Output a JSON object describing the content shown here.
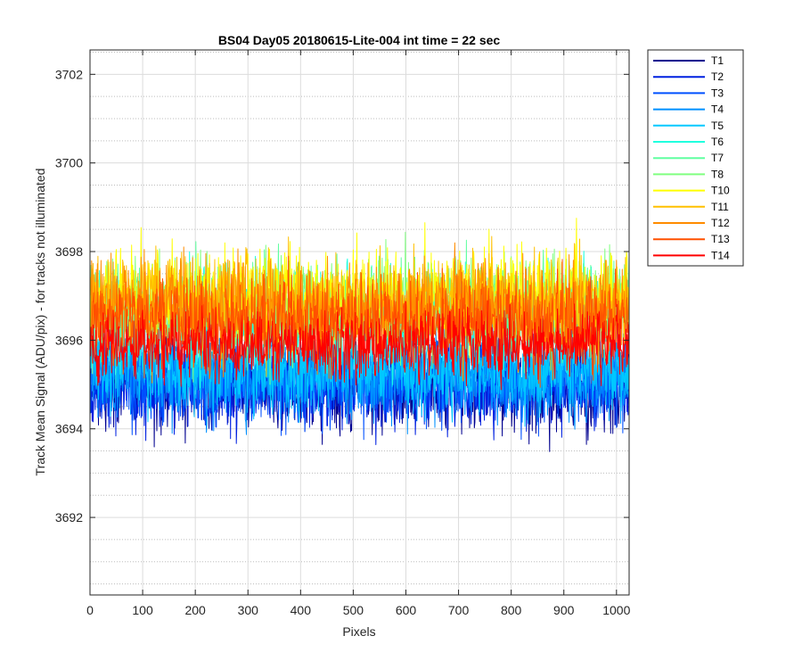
{
  "chart_data": {
    "type": "line",
    "title": "BS04 Day05 20180615-Lite-004 int time = 22 sec",
    "xlabel": "Pixels",
    "ylabel": "Track Mean Signal (ADU/pix) - for tracks not illuminated",
    "xlim": [
      0,
      1024
    ],
    "ylim": [
      3690.25,
      3702.55
    ],
    "xticks": [
      0,
      100,
      200,
      300,
      400,
      500,
      600,
      700,
      800,
      900,
      1000
    ],
    "yticks": [
      3692,
      3694,
      3696,
      3698,
      3700,
      3702
    ],
    "minor_ygrid": [
      3690.5,
      3691,
      3691.5,
      3692.5,
      3693,
      3693.5,
      3694.5,
      3695,
      3695.5,
      3696.5,
      3697,
      3697.5,
      3698.5,
      3699,
      3699.5,
      3700.5,
      3701,
      3701.5,
      3702.5
    ],
    "grid": true,
    "legend_position": "outside-top-right",
    "n_points": 1024,
    "series": [
      {
        "name": "T1",
        "color": "#00008f",
        "mean": 3694.9,
        "spread": 1.5
      },
      {
        "name": "T2",
        "color": "#0020e0",
        "mean": 3695.0,
        "spread": 1.5
      },
      {
        "name": "T3",
        "color": "#0050ff",
        "mean": 3695.1,
        "spread": 1.5
      },
      {
        "name": "T4",
        "color": "#0090ff",
        "mean": 3695.2,
        "spread": 1.5
      },
      {
        "name": "T5",
        "color": "#00c8ff",
        "mean": 3695.4,
        "spread": 1.5
      },
      {
        "name": "T6",
        "color": "#20ffdf",
        "mean": 3696.5,
        "spread": 1.6
      },
      {
        "name": "T7",
        "color": "#60ffa0",
        "mean": 3696.7,
        "spread": 1.6
      },
      {
        "name": "T8",
        "color": "#80ff80",
        "mean": 3696.8,
        "spread": 1.6
      },
      {
        "name": "T10",
        "color": "#ffff00",
        "mean": 3697.0,
        "spread": 1.6
      },
      {
        "name": "T11",
        "color": "#ffc000",
        "mean": 3696.9,
        "spread": 1.6
      },
      {
        "name": "T12",
        "color": "#ff8c00",
        "mean": 3696.7,
        "spread": 1.6
      },
      {
        "name": "T13",
        "color": "#ff5000",
        "mean": 3696.4,
        "spread": 1.5
      },
      {
        "name": "T14",
        "color": "#ff0000",
        "mean": 3695.9,
        "spread": 1.2
      }
    ]
  }
}
